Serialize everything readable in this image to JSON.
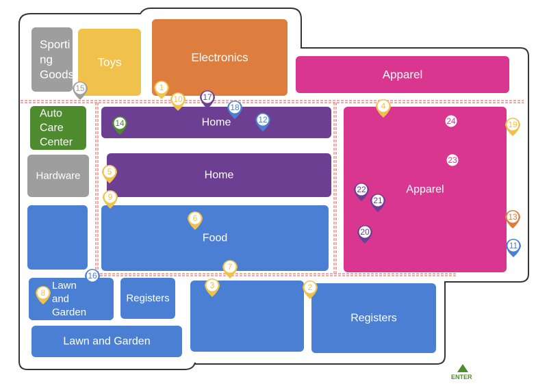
{
  "departments": [
    {
      "id": "sporting-goods",
      "label": [
        "Sporti",
        "ng",
        "Goods"
      ],
      "color": "#9e9e9e"
    },
    {
      "id": "toys",
      "label": [
        "Toys"
      ],
      "color": "#f0c14b"
    },
    {
      "id": "electronics",
      "label": [
        "Electronics"
      ],
      "color": "#dd7e3f"
    },
    {
      "id": "apparel-top",
      "label": [
        "Apparel"
      ],
      "color": "#d9368f"
    },
    {
      "id": "auto-care",
      "label": [
        "Auto",
        "Care",
        "Center"
      ],
      "color": "#4e8a2e"
    },
    {
      "id": "home-top",
      "label": [
        "Home"
      ],
      "color": "#6c3f93"
    },
    {
      "id": "home-mid",
      "label": [
        "Home"
      ],
      "color": "#6c3f93"
    },
    {
      "id": "apparel-main",
      "label": [
        "Apparel"
      ],
      "color": "#d9368f"
    },
    {
      "id": "hardware",
      "label": [
        "Hardware"
      ],
      "color": "#9e9e9e"
    },
    {
      "id": "unlabeled-blue",
      "label": [],
      "color": "#4a7fd4"
    },
    {
      "id": "food",
      "label": [
        "Food"
      ],
      "color": "#4a7fd4"
    },
    {
      "id": "lawn-small",
      "label": [
        "Lawn",
        "and",
        "Garden"
      ],
      "color": "#4a7fd4"
    },
    {
      "id": "registers-small",
      "label": [
        "Registers"
      ],
      "color": "#4a7fd4"
    },
    {
      "id": "center-block",
      "label": [],
      "color": "#4a7fd4"
    },
    {
      "id": "registers-right",
      "label": [
        "Registers"
      ],
      "color": "#4a7fd4"
    },
    {
      "id": "lawn-wide",
      "label": [
        "Lawn and Garden"
      ],
      "color": "#4a7fd4"
    }
  ],
  "pins": [
    {
      "num": "1",
      "color": "#f0c14b"
    },
    {
      "num": "2",
      "color": "#f0c14b"
    },
    {
      "num": "3",
      "color": "#f0c14b"
    },
    {
      "num": "4",
      "color": "#f0c14b"
    },
    {
      "num": "5",
      "color": "#f0c14b"
    },
    {
      "num": "6",
      "color": "#f0c14b"
    },
    {
      "num": "7",
      "color": "#f0c14b"
    },
    {
      "num": "8",
      "color": "#f0c14b"
    },
    {
      "num": "9",
      "color": "#f0c14b"
    },
    {
      "num": "10",
      "color": "#f0c14b"
    },
    {
      "num": "11",
      "color": "#4a7fd4"
    },
    {
      "num": "12",
      "color": "#4a7fd4"
    },
    {
      "num": "13",
      "color": "#dd7e3f"
    },
    {
      "num": "14",
      "color": "#4e8a2e"
    },
    {
      "num": "15",
      "color": "#9e9e9e"
    },
    {
      "num": "16",
      "color": "#4a7fd4"
    },
    {
      "num": "17",
      "color": "#6c3f93"
    },
    {
      "num": "18",
      "color": "#4a7fd4"
    },
    {
      "num": "19",
      "color": "#f0c14b"
    },
    {
      "num": "20",
      "color": "#6c3f93"
    },
    {
      "num": "21",
      "color": "#6c3f93"
    },
    {
      "num": "22",
      "color": "#6c3f93"
    },
    {
      "num": "23",
      "color": "#d9368f"
    },
    {
      "num": "24",
      "color": "#d9368f"
    }
  ],
  "entrance": {
    "label": "ENTER",
    "color": "#4e8a2e"
  },
  "colors": {
    "aisle": "#f08a8a",
    "outline": "#333333"
  }
}
